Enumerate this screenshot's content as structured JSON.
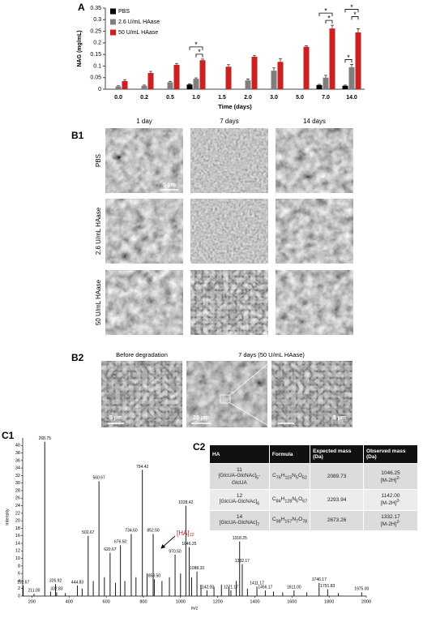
{
  "chart_data": [
    {
      "type": "bar",
      "panel_label": "A",
      "ylabel": "NAG (mg/mL)",
      "xlabel": "Time (days)",
      "categories": [
        "0.0",
        "0.2",
        "0.5",
        "1.0",
        "1.5",
        "2.0",
        "3.0",
        "5.0",
        "7.0",
        "14.0"
      ],
      "ylim": [
        0,
        0.35
      ],
      "yticks": [
        0,
        0.05,
        0.1,
        0.15,
        0.2,
        0.25,
        0.3,
        0.35
      ],
      "legend": "upper left",
      "series": [
        {
          "name": "PBS",
          "color": "#000000",
          "values": [
            null,
            null,
            null,
            0.02,
            null,
            null,
            null,
            null,
            0.018,
            0.015
          ],
          "errors": [
            null,
            null,
            null,
            0.003,
            null,
            null,
            null,
            null,
            0.003,
            0.003
          ]
        },
        {
          "name": "2.6 U/mL HAase",
          "color": "#7f7f7f",
          "values": [
            0.012,
            0.015,
            0.03,
            0.045,
            null,
            0.038,
            0.08,
            null,
            0.05,
            0.095
          ],
          "errors": [
            0.003,
            0.003,
            0.004,
            0.004,
            null,
            0.006,
            0.012,
            null,
            0.01,
            0.012
          ]
        },
        {
          "name": "50 U/mL HAase",
          "color": "#cc1f1f",
          "values": [
            0.035,
            0.07,
            0.105,
            0.125,
            0.097,
            0.14,
            0.118,
            0.183,
            0.262,
            0.245
          ],
          "errors": [
            0.006,
            0.007,
            0.006,
            0.005,
            0.009,
            0.006,
            0.014,
            0.004,
            0.014,
            0.016
          ]
        }
      ],
      "significance": [
        {
          "category": "1.0",
          "pair": [
            "2.6 U/mL HAase",
            "50 U/mL HAase"
          ],
          "label": "*"
        },
        {
          "category": "1.0",
          "pair": [
            "PBS",
            "50 U/mL HAase"
          ],
          "label": "*"
        },
        {
          "category": "7.0",
          "pair": [
            "2.6 U/mL HAase",
            "50 U/mL HAase"
          ],
          "label": "*"
        },
        {
          "category": "7.0",
          "pair": [
            "PBS",
            "50 U/mL HAase"
          ],
          "label": "*"
        },
        {
          "category": "14.0",
          "pair": [
            "PBS",
            "2.6 U/mL HAase"
          ],
          "label": "*"
        },
        {
          "category": "14.0",
          "pair": [
            "2.6 U/mL HAase",
            "50 U/mL HAase"
          ],
          "label": "*"
        },
        {
          "category": "14.0",
          "pair": [
            "PBS",
            "50 U/mL HAase"
          ],
          "label": "*"
        }
      ]
    },
    {
      "type": "spectrum",
      "panel_label": "C1",
      "xlabel": "m/z",
      "ylabel": "Intensity",
      "color": "#000000",
      "xlim": [
        150,
        2000
      ],
      "xticks": [
        200,
        400,
        600,
        800,
        1000,
        1200,
        1400,
        1600,
        1800,
        2000
      ],
      "ylim": [
        0,
        42
      ],
      "yticks": [
        0,
        2,
        4,
        6,
        8,
        10,
        12,
        14,
        16,
        18,
        20,
        22,
        24,
        26,
        28,
        30,
        32,
        34,
        36,
        38,
        40
      ],
      "x": [
        152.67,
        211.0,
        268.75,
        300,
        326.92,
        332.83,
        380,
        444.83,
        470,
        502.67,
        530,
        560.67,
        590,
        620.67,
        650,
        676.5,
        700,
        734.5,
        760,
        794.42,
        820,
        852.5,
        858.5,
        900,
        940,
        970.5,
        1000,
        1028.42,
        1046.25,
        1060,
        1088.33,
        1110,
        1142.0,
        1180,
        1220,
        1260,
        1271.17,
        1300,
        1318.25,
        1332.17,
        1360,
        1411.17,
        1456.17,
        1500,
        1550,
        1611.0,
        1680,
        1746.17,
        1791.83,
        1850,
        1975.0
      ],
      "values": [
        2.8,
        0.6,
        41,
        1.2,
        3.2,
        1.0,
        0.8,
        2.8,
        2,
        16,
        4,
        30.5,
        5,
        11.5,
        3.5,
        13.5,
        4,
        16.5,
        5,
        33.5,
        6,
        16.5,
        4.5,
        4,
        5,
        11,
        6,
        24,
        13,
        5,
        6.5,
        3,
        1.5,
        2.5,
        3,
        2.5,
        1.5,
        4,
        14.5,
        8.5,
        2,
        2.5,
        1.5,
        1.2,
        1,
        1.5,
        1,
        3.5,
        1.8,
        0.8,
        1.0
      ],
      "x_labels": [
        "152.67",
        "211.00",
        "268.75",
        null,
        "326.92",
        "332.83",
        null,
        "444.83",
        null,
        "502.67",
        null,
        "560.67",
        null,
        "620.67",
        null,
        "676.50",
        null,
        "734.50",
        null,
        "794.42",
        null,
        "852.50",
        "858.50",
        null,
        null,
        "970.50",
        null,
        "1028.42",
        "1046.25",
        null,
        "1088.33",
        null,
        "1142.00",
        null,
        null,
        null,
        "1271.17",
        null,
        "1318.25",
        "1332.17",
        null,
        "1411.17",
        "1456.17",
        null,
        null,
        "1611.00",
        null,
        "1746.17",
        "1791.83",
        null,
        "1975.00"
      ],
      "annotations": [
        {
          "text": "[HA]",
          "sub": "11",
          "color": "#b22222"
        },
        {
          "text": "[HA]",
          "sub": "12",
          "color": "#b22222"
        },
        {
          "text": "[HA]",
          "sub": "14",
          "color": "#b22222"
        }
      ]
    }
  ],
  "sem": {
    "panel_label": "B1",
    "columns": [
      "1 day",
      "7 days",
      "14 days"
    ],
    "rows": [
      "PBS",
      "2.6 U/mL HAase",
      "50 U/mL HAase"
    ],
    "scale_bar": "5 µm"
  },
  "sem_b2": {
    "panel_label": "B2",
    "captions": [
      "Before degradation",
      "7 days (50 U/mL HAase)"
    ],
    "scale_bars": [
      "5 µm",
      "20 µm",
      "5 µm"
    ]
  },
  "table": {
    "panel_label": "C2",
    "header": [
      "HA",
      "Formula",
      "Expected mass (Da)",
      "Observed mass (Da)"
    ],
    "rows": [
      {
        "ha": [
          "11",
          "[GlcUA-GlcNAc]",
          "5",
          "-GlcUA"
        ],
        "formula": [
          "C",
          "76",
          "H",
          "115",
          "N",
          "5",
          "O",
          "62"
        ],
        "expected": 2089.73,
        "observed": [
          "1046.25",
          "[M-2H]",
          "2-"
        ]
      },
      {
        "ha": [
          "12",
          "[GlcUA-GlcNAc]",
          "6"
        ],
        "formula": [
          "C",
          "84",
          "H",
          "128",
          "N",
          "6",
          "O",
          "67"
        ],
        "expected": 2293.94,
        "observed": [
          "1142.00",
          "[M-2H]",
          "2-"
        ]
      },
      {
        "ha": [
          "14",
          "[GlcUA-GlcNAc]",
          "7"
        ],
        "formula": [
          "C",
          "98",
          "H",
          "157",
          "N",
          "7",
          "O",
          "78"
        ],
        "expected": 2673.26,
        "observed": [
          "1332.17",
          "[M-2H]",
          "2-"
        ]
      }
    ]
  }
}
